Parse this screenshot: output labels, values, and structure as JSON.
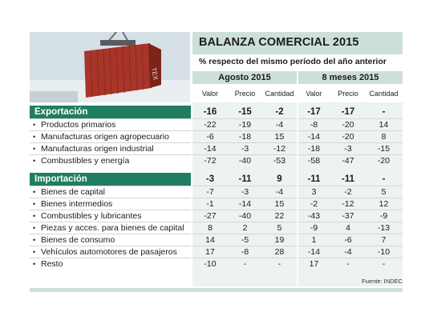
{
  "title": "BALANZA COMERCIAL 2015",
  "subtitle": "% respecto del mismo período del año anterior",
  "groups": [
    "Agosto 2015",
    "8 meses 2015"
  ],
  "columns": [
    "Valor",
    "Precio",
    "Cantidad",
    "Valor",
    "Precio",
    "Cantidad"
  ],
  "sections": [
    {
      "name": "Exportación",
      "totals": [
        "-16",
        "-15",
        "-2",
        "-17",
        "-17",
        "-"
      ],
      "rows": [
        {
          "label": "Productos primarios",
          "values": [
            "-22",
            "-19",
            "-4",
            "-8",
            "-20",
            "14"
          ]
        },
        {
          "label": "Manufacturas origen agropecuario",
          "values": [
            "-6",
            "-18",
            "15",
            "-14",
            "-20",
            "8"
          ]
        },
        {
          "label": "Manufacturas origen industrial",
          "values": [
            "-14",
            "-3",
            "-12",
            "-18",
            "-3",
            "-15"
          ]
        },
        {
          "label": "Combustibles y energía",
          "values": [
            "-72",
            "-40",
            "-53",
            "-58",
            "-47",
            "-20"
          ]
        }
      ]
    },
    {
      "name": "Importación",
      "totals": [
        "-3",
        "-11",
        "9",
        "-11",
        "-11",
        "-"
      ],
      "rows": [
        {
          "label": "Bienes de capital",
          "values": [
            "-7",
            "-3",
            "-4",
            "3",
            "-2",
            "5"
          ]
        },
        {
          "label": "Bienes intermedios",
          "values": [
            "-1",
            "-14",
            "15",
            "-2",
            "-12",
            "12"
          ]
        },
        {
          "label": "Combustibles y lubricantes",
          "values": [
            "-27",
            "-40",
            "22",
            "-43",
            "-37",
            "-9"
          ]
        },
        {
          "label": "Piezas y acces. para bienes de capital",
          "values": [
            "8",
            "2",
            "5",
            "-9",
            "4",
            "-13"
          ]
        },
        {
          "label": "Bienes de consumo",
          "values": [
            "14",
            "-5",
            "19",
            "1",
            "-6",
            "7"
          ]
        },
        {
          "label": "Vehículos automotores de pasajeros",
          "values": [
            "17",
            "-8",
            "28",
            "-14",
            "-4",
            "-10"
          ]
        },
        {
          "label": "Resto",
          "values": [
            "-10",
            "-",
            "-",
            "17",
            "-",
            "-"
          ]
        }
      ]
    }
  ],
  "source": "Fuente: INDEC",
  "container_text": "TEX"
}
